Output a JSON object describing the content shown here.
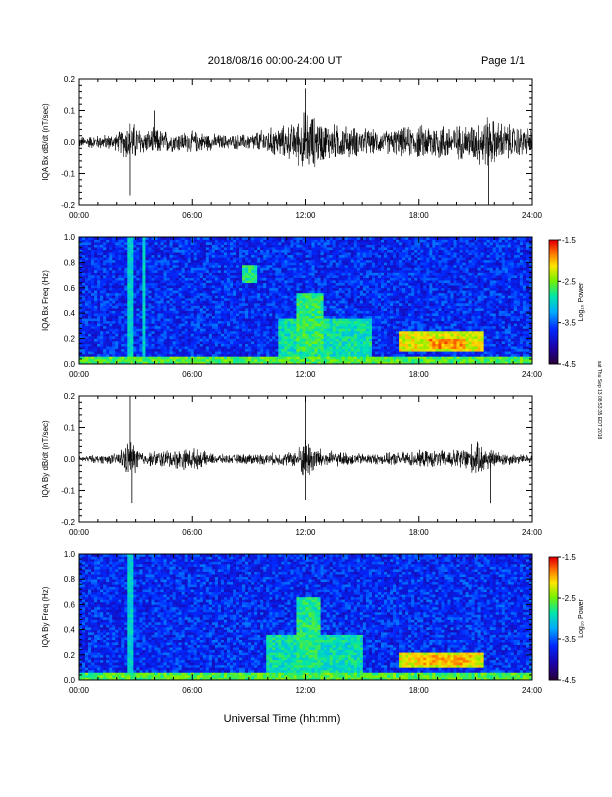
{
  "header": {
    "title": "2018/08/16  00:00-24:00 UT",
    "page": "Page 1/1"
  },
  "footer": {
    "xlabel": "Universal Time (hh:mm)",
    "side_note": "sat Thu Sep 13 08:53:35 EDT 2018"
  },
  "chart_data": [
    {
      "type": "line",
      "id": "bx-waveform",
      "ylabel": "IQA Bx dB/dt (nT/sec)",
      "xlim": [
        0,
        24
      ],
      "ylim": [
        -0.2,
        0.2
      ],
      "xticks": [
        "00:00",
        "06:00",
        "12:00",
        "18:00",
        "24:00"
      ],
      "yticks": [
        "-0.2",
        "-0.1",
        "0.0",
        "0.1",
        "0.2"
      ],
      "envelope": {
        "x_hours": [
          0,
          1,
          2,
          2.7,
          3.5,
          4,
          5,
          6,
          7,
          8,
          9,
          10,
          11,
          11.5,
          12,
          12.5,
          13,
          14,
          15,
          16,
          17,
          18,
          19,
          20,
          21,
          21.5,
          22,
          23,
          24
        ],
        "amplitude": [
          0.02,
          0.025,
          0.03,
          0.08,
          0.04,
          0.05,
          0.035,
          0.04,
          0.03,
          0.025,
          0.03,
          0.05,
          0.06,
          0.07,
          0.12,
          0.09,
          0.07,
          0.06,
          0.05,
          0.04,
          0.05,
          0.06,
          0.07,
          0.06,
          0.07,
          0.1,
          0.08,
          0.06,
          0.05
        ]
      },
      "spikes": [
        {
          "x": 2.7,
          "y": -0.17
        },
        {
          "x": 4.0,
          "y": 0.1
        },
        {
          "x": 12.0,
          "y": 0.17
        },
        {
          "x": 21.7,
          "y": -0.2
        }
      ]
    },
    {
      "type": "heatmap",
      "id": "bx-spectrogram",
      "ylabel": "IQA Bx Freq (Hz)",
      "xlim": [
        0,
        24
      ],
      "ylim": [
        0.0,
        1.0
      ],
      "xticks": [
        "00:00",
        "06:00",
        "12:00",
        "18:00",
        "24:00"
      ],
      "yticks": [
        "0.0",
        "0.2",
        "0.4",
        "0.6",
        "0.8",
        "1.0"
      ],
      "colorbar": {
        "label": "Log₁₀ Power",
        "range": [
          -4.5,
          -1.5
        ],
        "ticks": [
          "-1.5",
          "-2.5",
          "-3.5",
          "-4.5"
        ]
      },
      "regions": [
        {
          "x": [
            10.5,
            15.5
          ],
          "y": [
            0.05,
            0.35
          ],
          "level": -2.9
        },
        {
          "x": [
            11.5,
            13.0
          ],
          "y": [
            0.1,
            0.55
          ],
          "level": -2.7
        },
        {
          "x": [
            17.0,
            21.5
          ],
          "y": [
            0.1,
            0.25
          ],
          "level": -2.2
        },
        {
          "x": [
            18.5,
            20.5
          ],
          "y": [
            0.12,
            0.2
          ],
          "level": -1.9
        },
        {
          "x": [
            8.6,
            9.4
          ],
          "y": [
            0.65,
            0.78
          ],
          "level": -2.8
        },
        {
          "x": [
            0.0,
            24.0
          ],
          "y": [
            0.0,
            0.05
          ],
          "level": -2.6
        }
      ],
      "vertical_lines": [
        2.7,
        3.4
      ]
    },
    {
      "type": "line",
      "id": "by-waveform",
      "ylabel": "IQA By dB/dt (nT/sec)",
      "xlim": [
        0,
        24
      ],
      "ylim": [
        -0.2,
        0.2
      ],
      "xticks": [
        "00:00",
        "06:00",
        "12:00",
        "18:00",
        "24:00"
      ],
      "yticks": [
        "-0.2",
        "-0.1",
        "0.0",
        "0.1",
        "0.2"
      ],
      "envelope": {
        "x_hours": [
          0,
          1,
          2,
          2.7,
          3.5,
          4,
          5,
          6,
          7,
          8,
          9,
          10,
          11,
          11.5,
          12,
          12.5,
          13,
          14,
          15,
          16,
          17,
          18,
          19,
          20,
          21,
          21.5,
          22,
          23,
          24
        ],
        "amplitude": [
          0.01,
          0.015,
          0.02,
          0.07,
          0.02,
          0.03,
          0.035,
          0.04,
          0.02,
          0.015,
          0.02,
          0.02,
          0.025,
          0.03,
          0.08,
          0.05,
          0.03,
          0.025,
          0.02,
          0.02,
          0.025,
          0.03,
          0.03,
          0.035,
          0.06,
          0.05,
          0.03,
          0.02,
          0.015
        ]
      },
      "spikes": [
        {
          "x": 2.7,
          "y": 0.2
        },
        {
          "x": 2.8,
          "y": -0.14
        },
        {
          "x": 12.0,
          "y": 0.19
        },
        {
          "x": 12.0,
          "y": -0.13
        },
        {
          "x": 21.8,
          "y": -0.14
        }
      ]
    },
    {
      "type": "heatmap",
      "id": "by-spectrogram",
      "ylabel": "IQA By Freq (Hz)",
      "xlim": [
        0,
        24
      ],
      "ylim": [
        0.0,
        1.0
      ],
      "xticks": [
        "00:00",
        "06:00",
        "12:00",
        "18:00",
        "24:00"
      ],
      "yticks": [
        "0.0",
        "0.2",
        "0.4",
        "0.6",
        "0.8",
        "1.0"
      ],
      "colorbar": {
        "label": "Log₁₀ Power",
        "range": [
          -4.5,
          -1.5
        ],
        "ticks": [
          "-1.5",
          "-2.5",
          "-3.5",
          "-4.5"
        ]
      },
      "regions": [
        {
          "x": [
            10.0,
            15.0
          ],
          "y": [
            0.05,
            0.35
          ],
          "level": -2.9
        },
        {
          "x": [
            11.5,
            12.8
          ],
          "y": [
            0.1,
            0.65
          ],
          "level": -2.8
        },
        {
          "x": [
            17.0,
            21.5
          ],
          "y": [
            0.1,
            0.22
          ],
          "level": -2.2
        },
        {
          "x": [
            18.0,
            21.0
          ],
          "y": [
            0.12,
            0.2
          ],
          "level": -2.0
        },
        {
          "x": [
            0.0,
            24.0
          ],
          "y": [
            0.0,
            0.05
          ],
          "level": -2.6
        }
      ],
      "vertical_lines": [
        2.7
      ]
    }
  ]
}
